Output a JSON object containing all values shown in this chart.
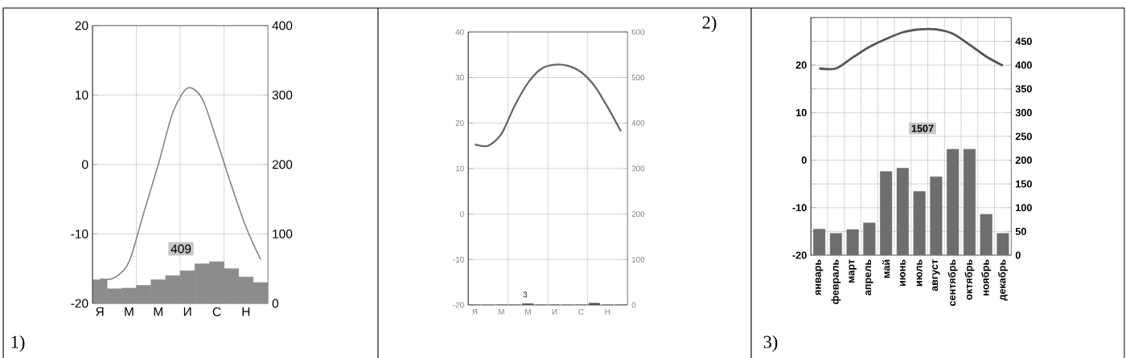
{
  "chart_data": [
    {
      "type": "line",
      "categories": [
        "Я",
        null,
        "М",
        null,
        "М",
        null,
        "И",
        null,
        "С",
        null,
        "Н",
        null
      ],
      "ylim": [
        -20,
        20
      ],
      "yticks": [
        -20,
        -10,
        0,
        10,
        20
      ],
      "y2lim": [
        0,
        400
      ],
      "y2ticks": [
        0,
        100,
        200,
        300,
        400
      ],
      "grid": true,
      "marker": "none",
      "annotations": [
        "409",
        "1)"
      ],
      "series": [
        {
          "type": "bar",
          "axis": "y2",
          "color": "#8c8c8c",
          "values": [
            34,
            21,
            22,
            26,
            34,
            40,
            47,
            57,
            60,
            50,
            38,
            30
          ]
        },
        {
          "color": "#8a8a8a",
          "values": [
            -16.5,
            -16.3,
            -14,
            -7,
            0,
            7.5,
            11,
            9.5,
            3.5,
            -3,
            -9,
            -13.7
          ]
        }
      ]
    },
    {
      "type": "line",
      "categories": [
        "Я",
        null,
        "М",
        null,
        "М",
        null,
        "И",
        null,
        "С",
        null,
        "Н",
        null
      ],
      "ylim": [
        -20,
        40
      ],
      "yticks": [
        -20,
        -10,
        0,
        10,
        20,
        30,
        40
      ],
      "y2lim": [
        0,
        600
      ],
      "y2ticks": [
        0,
        100,
        200,
        300,
        400,
        500,
        600
      ],
      "grid": true,
      "marker": "none",
      "annotations": [
        "3",
        "2)"
      ],
      "series": [
        {
          "type": "bar",
          "axis": "y2",
          "color": "#555555",
          "values": [
            0,
            0,
            0,
            0,
            3,
            0,
            0,
            0,
            0,
            4,
            0,
            0
          ]
        },
        {
          "color": "#666666",
          "values": [
            15.3,
            15,
            17.6,
            23.8,
            28.8,
            31.9,
            32.8,
            32.6,
            31.2,
            28.2,
            23.5,
            18.2
          ]
        }
      ]
    },
    {
      "type": "line",
      "categories": [
        "январь",
        "февраль",
        "март",
        "апрель",
        "май",
        "июнь",
        "июль",
        "август",
        "сентябрь",
        "октябрь",
        "ноябрь",
        "декабрь"
      ],
      "ylim": [
        -20,
        30
      ],
      "yticks": [
        -20,
        -10,
        0,
        10,
        20,
        {
          "value": 30,
          "label": null
        }
      ],
      "y2lim": [
        0,
        500
      ],
      "y2ticks": [
        0,
        50,
        100,
        150,
        200,
        250,
        300,
        350,
        400,
        450,
        {
          "value": 500,
          "label": null
        }
      ],
      "grid": true,
      "marker": "none",
      "annotations": [
        "1507",
        "3)"
      ],
      "series": [
        {
          "type": "bar",
          "axis": "y2",
          "color": "#6e6e6e",
          "values": [
            55,
            46,
            54,
            68,
            176,
            183,
            134,
            165,
            223,
            223,
            86,
            46
          ]
        },
        {
          "color": "#555555",
          "values": [
            19.3,
            19.3,
            21.6,
            23.8,
            25.5,
            26.9,
            27.5,
            27.5,
            26.6,
            24.3,
            21.8,
            19.9
          ]
        }
      ]
    }
  ]
}
